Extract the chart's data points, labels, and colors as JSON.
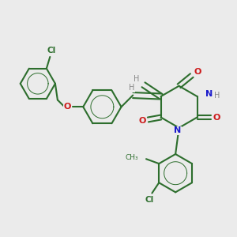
{
  "background_color": "#ebebeb",
  "bond_color": "#2d6e2d",
  "N_color": "#1a1acc",
  "O_color": "#cc1a1a",
  "Cl_color": "#2d6e2d",
  "H_color": "#888888",
  "line_width": 1.5,
  "figsize": [
    3.0,
    3.0
  ],
  "dpi": 100,
  "xlim": [
    0,
    10
  ],
  "ylim": [
    0,
    10
  ]
}
